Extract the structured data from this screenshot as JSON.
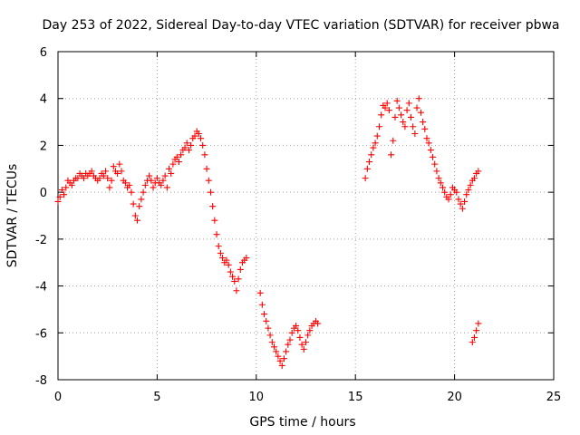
{
  "chart_data": {
    "type": "scatter",
    "title": "Day 253 of 2022, Sidereal Day-to-day VTEC variation (SDTVAR) for receiver pbwa",
    "xlabel": "GPS time / hours",
    "ylabel": "SDTVAR / TECUs",
    "xlim": [
      0,
      25
    ],
    "ylim": [
      -8,
      6
    ],
    "x_ticks": [
      0,
      5,
      10,
      15,
      20,
      25
    ],
    "y_ticks": [
      -8,
      -6,
      -4,
      -2,
      0,
      2,
      4,
      6
    ],
    "x_tick_labels": [
      "0",
      "5",
      "10",
      "15",
      "20",
      "25"
    ],
    "y_tick_labels": [
      "-8",
      "-6",
      "-4",
      "-2",
      "0",
      "2",
      "4",
      "6"
    ],
    "grid": true,
    "marker": "plus",
    "color": "#ff0000",
    "series": [
      {
        "x": [
          0.0,
          0.1,
          0.2,
          0.3,
          0.4,
          0.5,
          0.6,
          0.7,
          0.8,
          0.9,
          1.0,
          1.1,
          1.2,
          1.3,
          1.4,
          1.5,
          1.6,
          1.7,
          1.8,
          1.9,
          2.0,
          2.1,
          2.2,
          2.3,
          2.4,
          2.5,
          2.6,
          2.7,
          2.8,
          2.9,
          3.0,
          3.1,
          3.2,
          3.3,
          3.4,
          3.5,
          3.6,
          3.7,
          3.8,
          3.9,
          4.0,
          4.1,
          4.2,
          4.3,
          4.4,
          4.5,
          4.6,
          4.7,
          4.8,
          4.9,
          5.0,
          5.1,
          5.2,
          5.3,
          5.4,
          5.5,
          5.6,
          5.7,
          5.8,
          5.9,
          6.0,
          6.1,
          6.2,
          6.3,
          6.4,
          6.5,
          6.6,
          6.7,
          6.8,
          6.9,
          7.0,
          7.1,
          7.2,
          7.3,
          7.4,
          7.5,
          7.6,
          7.7,
          7.8,
          7.9,
          8.0,
          8.1,
          8.2,
          8.3,
          8.4,
          8.5,
          8.6,
          8.7,
          8.8,
          8.9,
          9.0,
          9.1,
          9.2,
          9.3,
          9.4,
          9.5
        ],
        "y": [
          -0.4,
          -0.2,
          0.1,
          -0.1,
          0.2,
          0.5,
          0.4,
          0.3,
          0.5,
          0.6,
          0.6,
          0.8,
          0.7,
          0.6,
          0.8,
          0.7,
          0.8,
          0.9,
          0.7,
          0.6,
          0.5,
          0.6,
          0.8,
          0.7,
          0.9,
          0.6,
          0.2,
          0.5,
          1.1,
          0.9,
          0.8,
          1.2,
          0.9,
          0.5,
          0.4,
          0.2,
          0.3,
          0.0,
          -0.5,
          -1.0,
          -1.2,
          -0.6,
          -0.3,
          0.0,
          0.3,
          0.5,
          0.7,
          0.5,
          0.2,
          0.4,
          0.6,
          0.4,
          0.3,
          0.5,
          0.7,
          0.2,
          1.0,
          0.8,
          1.2,
          1.4,
          1.5,
          1.3,
          1.6,
          1.8,
          1.9,
          2.1,
          1.8,
          2.0,
          2.3,
          2.4,
          2.6,
          2.5,
          2.3,
          2.0,
          1.6,
          1.0,
          0.5,
          0.0,
          -0.6,
          -1.2,
          -1.8,
          -2.3,
          -2.6,
          -2.8,
          -3.0,
          -2.9,
          -3.1,
          -3.4,
          -3.6,
          -3.8,
          -4.2,
          -3.7,
          -3.3,
          -3.0,
          -2.9,
          -2.8
        ]
      },
      {
        "x": [
          10.2,
          10.3,
          10.4,
          10.5,
          10.6,
          10.7,
          10.8,
          10.9,
          11.0,
          11.1,
          11.2,
          11.3,
          11.4,
          11.5,
          11.6,
          11.7,
          11.8,
          11.9,
          12.0,
          12.1,
          12.2,
          12.3,
          12.4,
          12.5,
          12.6,
          12.7,
          12.8,
          12.9,
          13.0,
          13.1
        ],
        "y": [
          -4.3,
          -4.8,
          -5.2,
          -5.5,
          -5.8,
          -6.1,
          -6.4,
          -6.6,
          -6.8,
          -7.0,
          -7.2,
          -7.4,
          -7.1,
          -6.8,
          -6.5,
          -6.3,
          -6.0,
          -5.8,
          -5.7,
          -5.9,
          -6.2,
          -6.5,
          -6.7,
          -6.4,
          -6.1,
          -5.9,
          -5.7,
          -5.6,
          -5.5,
          -5.6
        ]
      },
      {
        "x": [
          15.5,
          15.6,
          15.7,
          15.8,
          15.9,
          16.0,
          16.1,
          16.2,
          16.3,
          16.4,
          16.5,
          16.6,
          16.7,
          16.8,
          16.9,
          17.0,
          17.1,
          17.2,
          17.3,
          17.4,
          17.5,
          17.6,
          17.7,
          17.8,
          17.9,
          18.0,
          18.1,
          18.2,
          18.3,
          18.4,
          18.5,
          18.6,
          18.7,
          18.8,
          18.9,
          19.0,
          19.1,
          19.2,
          19.3,
          19.4,
          19.5,
          19.6,
          19.7,
          19.8,
          19.9,
          20.0,
          20.1,
          20.2,
          20.3,
          20.4,
          20.5,
          20.6,
          20.7,
          20.8,
          20.9,
          21.0,
          21.1,
          21.2
        ],
        "y": [
          0.6,
          1.0,
          1.3,
          1.6,
          1.9,
          2.1,
          2.4,
          2.8,
          3.3,
          3.7,
          3.6,
          3.8,
          3.5,
          1.6,
          2.2,
          3.2,
          3.9,
          3.6,
          3.3,
          3.0,
          2.8,
          3.5,
          3.8,
          3.2,
          2.8,
          2.5,
          3.6,
          4.0,
          3.4,
          3.0,
          2.7,
          2.3,
          2.1,
          1.8,
          1.5,
          1.2,
          0.9,
          0.6,
          0.4,
          0.2,
          0.0,
          -0.2,
          -0.3,
          -0.1,
          0.2,
          0.1,
          0.0,
          -0.3,
          -0.5,
          -0.7,
          -0.4,
          -0.1,
          0.1,
          0.3,
          0.5,
          0.6,
          0.8,
          0.9
        ]
      },
      {
        "x": [
          20.9,
          21.0,
          21.1,
          21.2
        ],
        "y": [
          -6.4,
          -6.2,
          -5.9,
          -5.6
        ]
      }
    ]
  }
}
